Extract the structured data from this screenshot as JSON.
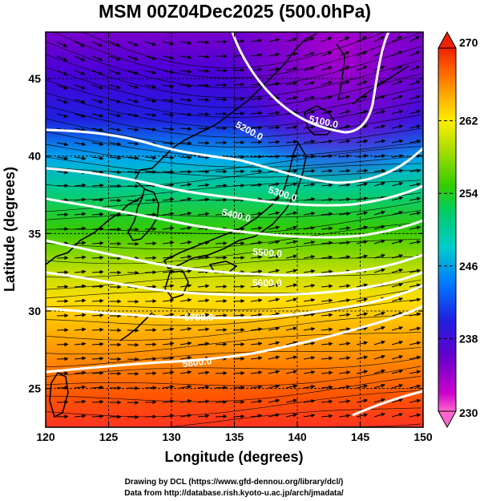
{
  "title": "MSM 00Z04Dec2025 (500.0hPa)",
  "xlabel": "Longitude (degrees)",
  "ylabel": "Latitude  (degrees)",
  "credits": [
    "Drawing by DCL (https://www.gfd-dennou.org/library/dcl/)",
    "Data from http://database.rish.kyoto-u.ac.jp/arch/jmadata/"
  ],
  "map": {
    "lon_range": [
      120,
      150
    ],
    "lat_range": [
      22.5,
      48
    ],
    "lon_ticks": [
      "120",
      "125",
      "130",
      "135",
      "140",
      "145",
      "150"
    ],
    "lat_ticks": [
      "25",
      "30",
      "35",
      "40",
      "45"
    ],
    "grid_lon": [
      125,
      130,
      135,
      140,
      145
    ],
    "grid_lat": [
      25,
      30,
      35,
      40,
      45
    ]
  },
  "colorbar": {
    "variable": "temperature",
    "min": 230,
    "max": 270,
    "tick_labels": [
      "270",
      "262",
      "254",
      "246",
      "238",
      "230"
    ],
    "colors": [
      "#ff66cc",
      "#cc00cc",
      "#6600cc",
      "#1f1fe0",
      "#0077ff",
      "#00cccc",
      "#00cc66",
      "#33cc00",
      "#aadd00",
      "#ffee00",
      "#ffaa00",
      "#ff5500",
      "#ee2200"
    ]
  },
  "contours": {
    "variable": "geopotential height",
    "labels": [
      "5100.0",
      "5200.0",
      "5300.0",
      "5400.0",
      "5500.0",
      "5600.0",
      "5700.0",
      "5800.0"
    ]
  }
}
